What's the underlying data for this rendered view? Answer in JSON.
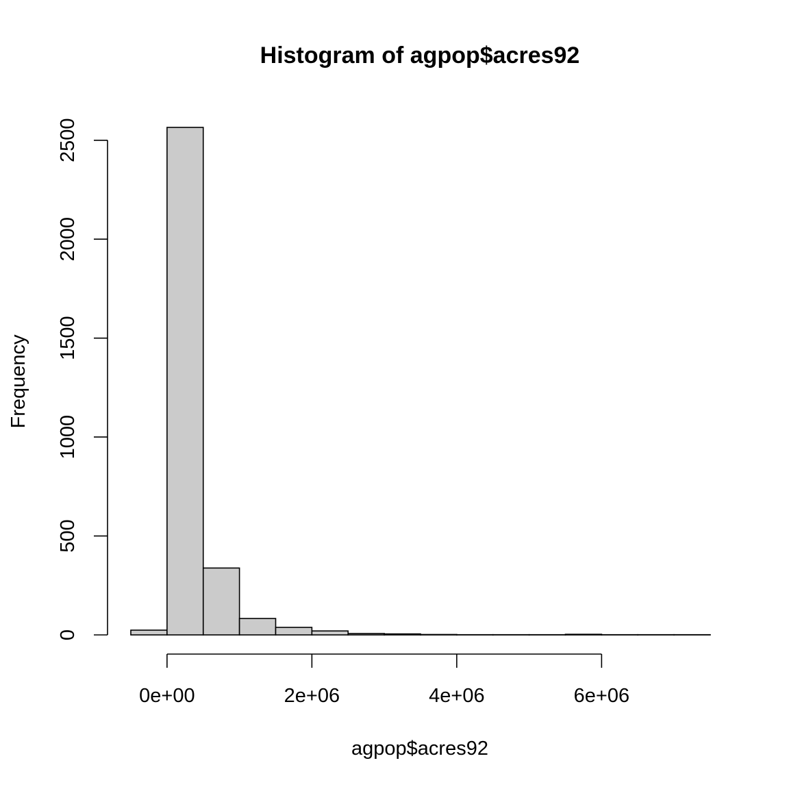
{
  "chart_data": {
    "type": "bar",
    "subtype": "histogram",
    "title": "Histogram of agpop$acres92",
    "xlabel": "agpop$acres92",
    "ylabel": "Frequency",
    "bin_width": 500000,
    "bins": [
      {
        "start": -500000,
        "end": 0,
        "count": 24
      },
      {
        "start": 0,
        "end": 500000,
        "count": 2565
      },
      {
        "start": 500000,
        "end": 1000000,
        "count": 338
      },
      {
        "start": 1000000,
        "end": 1500000,
        "count": 83
      },
      {
        "start": 1500000,
        "end": 2000000,
        "count": 38
      },
      {
        "start": 2000000,
        "end": 2500000,
        "count": 20
      },
      {
        "start": 2500000,
        "end": 3000000,
        "count": 7
      },
      {
        "start": 3000000,
        "end": 3500000,
        "count": 5
      },
      {
        "start": 3500000,
        "end": 4000000,
        "count": 2
      },
      {
        "start": 4000000,
        "end": 4500000,
        "count": 1
      },
      {
        "start": 4500000,
        "end": 5000000,
        "count": 1
      },
      {
        "start": 5000000,
        "end": 5500000,
        "count": 1
      },
      {
        "start": 5500000,
        "end": 6000000,
        "count": 3
      },
      {
        "start": 6000000,
        "end": 6500000,
        "count": 1
      },
      {
        "start": 6500000,
        "end": 7000000,
        "count": 1
      },
      {
        "start": 7000000,
        "end": 7500000,
        "count": 1
      }
    ],
    "xlim": [
      -500000,
      7500000
    ],
    "ylim": [
      0,
      2565
    ],
    "x_ticks": [
      {
        "value": 0,
        "label": "0e+00"
      },
      {
        "value": 2000000,
        "label": "2e+06"
      },
      {
        "value": 4000000,
        "label": "4e+06"
      },
      {
        "value": 6000000,
        "label": "6e+06"
      }
    ],
    "y_ticks": [
      {
        "value": 0,
        "label": "0"
      },
      {
        "value": 500,
        "label": "500"
      },
      {
        "value": 1000,
        "label": "1000"
      },
      {
        "value": 1500,
        "label": "1500"
      },
      {
        "value": 2000,
        "label": "2000"
      },
      {
        "value": 2500,
        "label": "2500"
      }
    ],
    "grid": false,
    "bar_color": "#cbcbcb",
    "edge_color": "#000000"
  }
}
